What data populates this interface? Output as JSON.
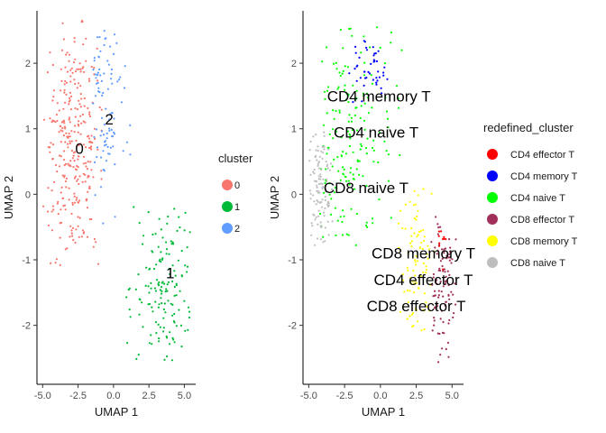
{
  "chart_data": [
    {
      "type": "scatter",
      "title": "",
      "xlabel": "UMAP 1",
      "ylabel": "UMAP 2",
      "xlim": [
        -5.4,
        5.8
      ],
      "ylim": [
        -2.9,
        2.8
      ],
      "x_ticks": [
        "-5.0",
        "-2.5",
        "0.0",
        "2.5",
        "5.0"
      ],
      "x_tick_values": [
        -5.0,
        -2.5,
        0.0,
        2.5,
        5.0
      ],
      "y_ticks": [
        "-2",
        "-1",
        "0",
        "1",
        "2"
      ],
      "y_tick_values": [
        -2,
        -1,
        0,
        1,
        2
      ],
      "grid": false,
      "legend_title": "cluster",
      "legend_position": "right",
      "legend": [
        {
          "label": "0",
          "color": "#F8766D"
        },
        {
          "label": "1",
          "color": "#00BA38"
        },
        {
          "label": "2",
          "color": "#619CFF"
        }
      ],
      "annotations": [
        {
          "text": "0",
          "x": -2.4,
          "y": 0.7
        },
        {
          "text": "2",
          "x": -0.3,
          "y": 1.15
        },
        {
          "text": "1",
          "x": 4.0,
          "y": -1.2
        }
      ],
      "series": [
        {
          "name": "0",
          "color": "#F8766D",
          "n": 300,
          "x_range": [
            -5.0,
            -0.8
          ],
          "y_range": [
            -1.1,
            2.7
          ],
          "centroid": [
            -2.8,
            0.7
          ]
        },
        {
          "name": "1",
          "color": "#00BA38",
          "n": 150,
          "x_range": [
            0.7,
            5.4
          ],
          "y_range": [
            -2.7,
            -0.1
          ],
          "centroid": [
            3.7,
            -1.4
          ]
        },
        {
          "name": "2",
          "color": "#619CFF",
          "n": 95,
          "x_range": [
            -1.5,
            2.2
          ],
          "y_range": [
            -0.9,
            2.5
          ],
          "centroid": [
            -0.8,
            1.4
          ]
        }
      ]
    },
    {
      "type": "scatter",
      "title": "",
      "xlabel": "UMAP 1",
      "ylabel": "UMAP 2",
      "xlim": [
        -5.4,
        5.8
      ],
      "ylim": [
        -2.9,
        2.8
      ],
      "x_ticks": [
        "-5.0",
        "-2.5",
        "0.0",
        "2.5",
        "5.0"
      ],
      "x_tick_values": [
        -5.0,
        -2.5,
        0.0,
        2.5,
        5.0
      ],
      "y_ticks": [
        "-2",
        "-1",
        "0",
        "1",
        "2"
      ],
      "y_tick_values": [
        -2,
        -1,
        0,
        1,
        2
      ],
      "grid": false,
      "legend_title": "redefined_cluster",
      "legend_position": "right",
      "legend": [
        {
          "label": "CD4 effector T",
          "color": "#FF0000"
        },
        {
          "label": "CD4 memory T",
          "color": "#0000FF"
        },
        {
          "label": "CD4 naive T",
          "color": "#00FF00"
        },
        {
          "label": "CD8 effector T",
          "color": "#A0305A"
        },
        {
          "label": "CD8 memory T",
          "color": "#FFFF00"
        },
        {
          "label": "CD8 naive T",
          "color": "#BEBEBE"
        }
      ],
      "annotations": [
        {
          "text": "CD4 memory T",
          "x": -0.1,
          "y": 1.5
        },
        {
          "text": "CD4 naive T",
          "x": -0.3,
          "y": 0.95
        },
        {
          "text": "CD8 naive T",
          "x": -1.0,
          "y": 0.1
        },
        {
          "text": "CD8 memory T",
          "x": 3.0,
          "y": -0.9
        },
        {
          "text": "CD4 effector T",
          "x": 3.0,
          "y": -1.3
        },
        {
          "text": "CD8 effector T",
          "x": 2.5,
          "y": -1.7
        }
      ],
      "series": [
        {
          "name": "CD4 naive T",
          "color": "#00FF00",
          "n": 180,
          "x_range": [
            -4.2,
            1.8
          ],
          "y_range": [
            -1.0,
            2.6
          ],
          "centroid": [
            -2.2,
            1.0
          ]
        },
        {
          "name": "CD4 memory T",
          "color": "#0000FF",
          "n": 45,
          "x_range": [
            -2.5,
            0.6
          ],
          "y_range": [
            1.3,
            2.5
          ],
          "centroid": [
            -1.0,
            2.0
          ]
        },
        {
          "name": "CD8 naive T",
          "color": "#BEBEBE",
          "n": 110,
          "x_range": [
            -5.0,
            -3.3
          ],
          "y_range": [
            -0.9,
            1.1
          ],
          "centroid": [
            -4.2,
            0.1
          ]
        },
        {
          "name": "CD8 memory T",
          "color": "#FFFF00",
          "n": 90,
          "x_range": [
            1.2,
            4.0
          ],
          "y_range": [
            -2.4,
            0.2
          ],
          "centroid": [
            2.6,
            -1.1
          ]
        },
        {
          "name": "CD8 effector T",
          "color": "#A0305A",
          "n": 95,
          "x_range": [
            3.5,
            5.4
          ],
          "y_range": [
            -2.6,
            -0.3
          ],
          "centroid": [
            4.3,
            -1.4
          ]
        },
        {
          "name": "CD4 effector T",
          "color": "#FF0000",
          "n": 10,
          "x_range": [
            3.9,
            4.9
          ],
          "y_range": [
            -1.2,
            -0.3
          ],
          "centroid": [
            4.4,
            -0.7
          ]
        }
      ]
    }
  ]
}
